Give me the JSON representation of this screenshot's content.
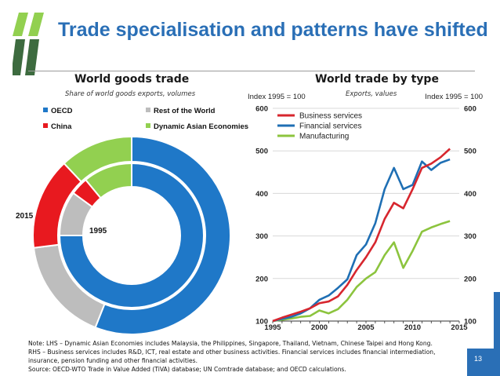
{
  "slide": {
    "title": "Trade specialisation and patterns have shifted",
    "page_number": "13",
    "brand_color": "#2a6fb6"
  },
  "notes": [
    "Note: LHS – Dynamic Asian Economies includes Malaysia, the Philippines, Singapore, Thailand, Vietnam, Chinese Taipei and Hong Kong.",
    "RHS – Business services includes R&D, ICT, real estate and other business activities. Financial services includes financial intermediation,",
    "insurance, pension funding and other financial activities.",
    "Source: OECD-WTO Trade in Value Added (TiVA) database; UN Comtrade database; and OECD calculations."
  ],
  "chart_data": [
    {
      "type": "pie",
      "variant": "donut",
      "title": "World goods trade",
      "subtitle": "Share of world goods exports, volumes",
      "legend": [
        {
          "name": "OECD",
          "color": "#1f78c8"
        },
        {
          "name": "Rest of the World",
          "color": "#bdbdbd"
        },
        {
          "name": "China",
          "color": "#e8191f"
        },
        {
          "name": "Dynamic Asian Economies",
          "color": "#92d050"
        }
      ],
      "legend_position": "top",
      "rings": [
        {
          "label": "1995",
          "ring": "inner",
          "values": {
            "OECD": 75,
            "Rest of the World": 10,
            "China": 4,
            "Dynamic Asian Economies": 11
          }
        },
        {
          "label": "2015",
          "ring": "outer",
          "values": {
            "OECD": 56,
            "Rest of the World": 17,
            "China": 15,
            "Dynamic Asian Economies": 12
          }
        }
      ]
    },
    {
      "type": "line",
      "title": "World trade by type",
      "subtitle": "Exports, values",
      "ylabel_left": "Index 1995 = 100",
      "ylabel_right": "Index 1995 = 100",
      "ylim": [
        100,
        600
      ],
      "yticks": [
        100,
        200,
        300,
        400,
        500,
        600
      ],
      "xlim": [
        1995,
        2015
      ],
      "xticks": [
        1995,
        2000,
        2005,
        2010,
        2015
      ],
      "grid": true,
      "legend_position": "top-left",
      "x": [
        1995,
        1996,
        1997,
        1998,
        1999,
        2000,
        2001,
        2002,
        2003,
        2004,
        2005,
        2006,
        2007,
        2008,
        2009,
        2010,
        2011,
        2012,
        2013,
        2014
      ],
      "series": [
        {
          "name": "Business services",
          "color": "#d7262e",
          "values": [
            100,
            108,
            115,
            122,
            130,
            142,
            146,
            158,
            185,
            220,
            250,
            285,
            340,
            378,
            365,
            410,
            460,
            470,
            485,
            505
          ]
        },
        {
          "name": "Financial services",
          "color": "#1f6fb4",
          "values": [
            100,
            105,
            110,
            118,
            130,
            150,
            160,
            178,
            198,
            255,
            280,
            330,
            410,
            460,
            410,
            420,
            475,
            455,
            472,
            480
          ]
        },
        {
          "name": "Manufacturing",
          "color": "#8cc43e",
          "values": [
            100,
            103,
            106,
            110,
            112,
            125,
            118,
            128,
            150,
            180,
            200,
            215,
            255,
            285,
            225,
            265,
            310,
            320,
            328,
            335
          ]
        }
      ]
    }
  ]
}
